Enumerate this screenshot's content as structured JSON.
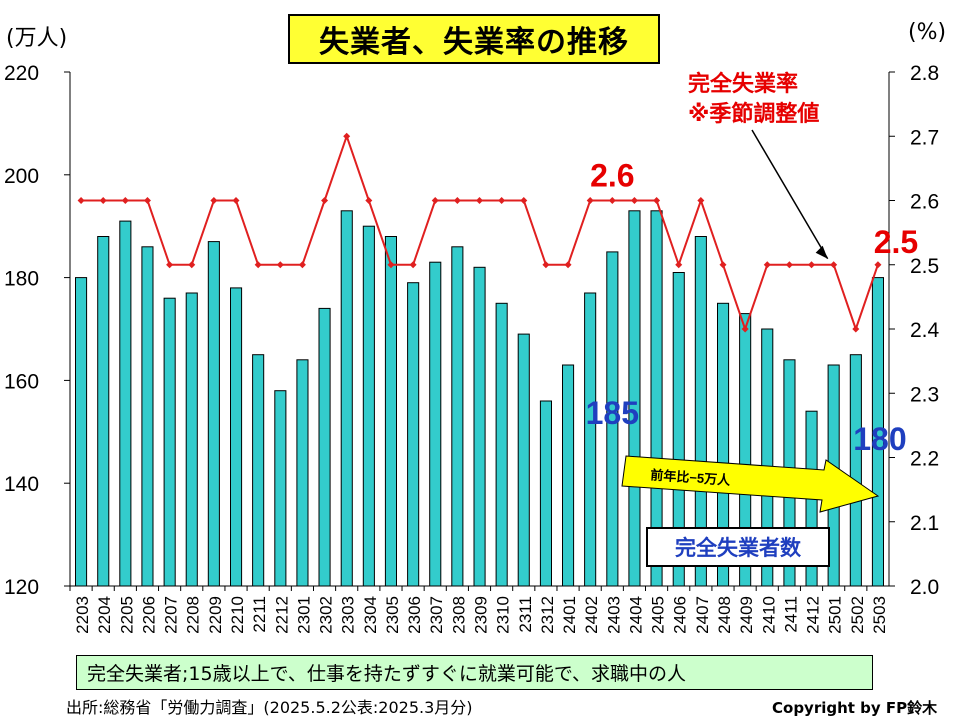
{
  "title": "失業者、失業率の推移",
  "left_unit": "(万人)",
  "right_unit": "(%)",
  "rate_series_label_line1": "完全失業率",
  "rate_series_label_line2": "※季節調整値",
  "bar_series_label": "完全失業者数",
  "definition": "完全失業者;15歳以上で、仕事を持たずすぐに就業可能で、求職中の人",
  "source": "出所:総務省「労働力調査」(2025.5.2公表:2025.3月分)",
  "copyright": "Copyright by FP鈴木",
  "arrow_label": "前年比−5万人",
  "colors": {
    "bar_fill": "#33cccc",
    "rate_line": "#e02020",
    "callout_red": "#e60000",
    "callout_blue": "#1f3fbf",
    "title_bg": "#ffff33",
    "definition_bg": "#ccffcc",
    "arrow_fill": "#ffff00"
  },
  "chart_data": {
    "type": "bar",
    "categories": [
      "2203",
      "2204",
      "2205",
      "2206",
      "2207",
      "2208",
      "2209",
      "2210",
      "2211",
      "2212",
      "2301",
      "2302",
      "2303",
      "2304",
      "2305",
      "2306",
      "2307",
      "2308",
      "2309",
      "2310",
      "2311",
      "2312",
      "2401",
      "2402",
      "2403",
      "2404",
      "2405",
      "2406",
      "2407",
      "2408",
      "2409",
      "2410",
      "2411",
      "2412",
      "2501",
      "2502",
      "2503"
    ],
    "series": [
      {
        "name": "完全失業者数",
        "type": "bar",
        "axis": "left",
        "values": [
          180,
          188,
          191,
          186,
          176,
          177,
          187,
          178,
          165,
          158,
          164,
          174,
          193,
          190,
          188,
          179,
          183,
          186,
          182,
          175,
          169,
          156,
          163,
          177,
          185,
          193,
          193,
          181,
          188,
          175,
          173,
          170,
          164,
          154,
          163,
          165,
          180
        ]
      },
      {
        "name": "完全失業率",
        "type": "line",
        "axis": "right",
        "values": [
          2.6,
          2.6,
          2.6,
          2.6,
          2.5,
          2.5,
          2.6,
          2.6,
          2.5,
          2.5,
          2.5,
          2.6,
          2.7,
          2.6,
          2.5,
          2.5,
          2.6,
          2.6,
          2.6,
          2.6,
          2.6,
          2.5,
          2.5,
          2.6,
          2.6,
          2.6,
          2.6,
          2.5,
          2.6,
          2.5,
          2.4,
          2.5,
          2.5,
          2.5,
          2.5,
          2.4,
          2.5
        ]
      }
    ],
    "y_left": {
      "min": 120,
      "max": 220,
      "ticks": [
        "120",
        "140",
        "160",
        "180",
        "200",
        "220"
      ]
    },
    "y_right": {
      "min": 2.0,
      "max": 2.8,
      "ticks": [
        "2.0",
        "2.1",
        "2.2",
        "2.3",
        "2.4",
        "2.5",
        "2.6",
        "2.7",
        "2.8"
      ]
    },
    "grid": false,
    "callouts": [
      {
        "text": "2.6",
        "category": "2403",
        "series": "完全失業率"
      },
      {
        "text": "2.5",
        "category": "2503",
        "series": "完全失業率"
      },
      {
        "text": "185",
        "category": "2403",
        "series": "完全失業者数"
      },
      {
        "text": "180",
        "category": "2503",
        "series": "完全失業者数"
      }
    ]
  }
}
